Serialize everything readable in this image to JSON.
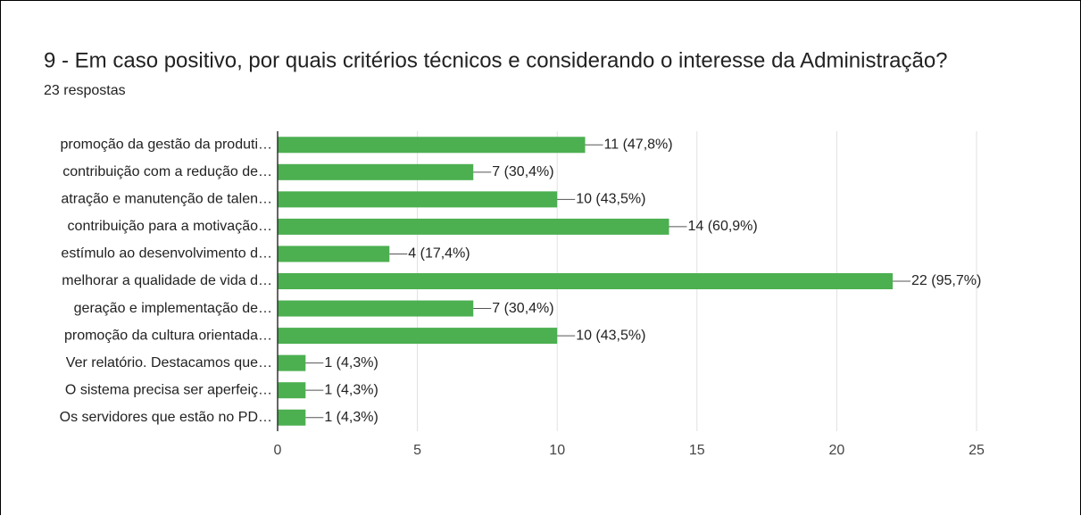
{
  "chart_data": {
    "type": "bar",
    "orientation": "horizontal",
    "title": "9 - Em caso positivo, por quais critérios técnicos e considerando o interesse da Administração?",
    "subtitle": "23 respostas",
    "categories": [
      "promoção da gestão da produti…",
      "contribuição com a redução de…",
      "atração e manutenção de talen…",
      "contribuição para a motivação…",
      "estímulo ao desenvolvimento d…",
      "melhorar a qualidade de vida d…",
      "geração e implementação de…",
      "promoção da cultura orientada…",
      "Ver relatório. Destacamos que…",
      "O sistema precisa ser aperfeiç…",
      "Os servidores que estão no PD…"
    ],
    "values": [
      11,
      7,
      10,
      14,
      4,
      22,
      7,
      10,
      1,
      1,
      1
    ],
    "value_labels": [
      "11 (47,8%)",
      "7 (30,4%)",
      "10 (43,5%)",
      "14 (60,9%)",
      "4 (17,4%)",
      "22 (95,7%)",
      "7 (30,4%)",
      "10 (43,5%)",
      "1 (4,3%)",
      "1 (4,3%)",
      "1 (4,3%)"
    ],
    "color": "#4caf50",
    "xlim": [
      0,
      25
    ],
    "xticks": [
      0,
      5,
      10,
      15,
      20,
      25
    ],
    "grid": true
  }
}
